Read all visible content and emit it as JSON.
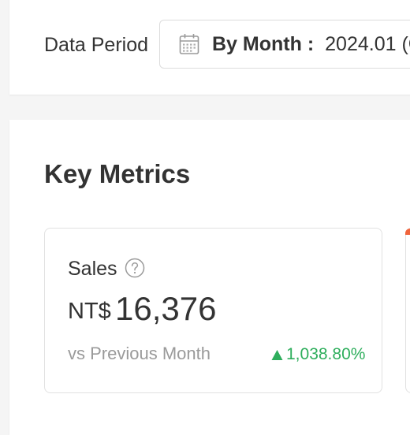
{
  "filter": {
    "label": "Data Period",
    "mode_label": "By Month :",
    "value": "2024.01 (C",
    "icon": "calendar-icon"
  },
  "key_metrics": {
    "title": "Key Metrics",
    "cards": [
      {
        "name": "Sales",
        "help_icon": "question-circle-icon",
        "currency": "NT$",
        "value": "16,376",
        "compare_label": "vs Previous Month",
        "change": "1,038.80%",
        "change_direction": "up",
        "change_color": "#2eae5c"
      }
    ]
  },
  "colors": {
    "background": "#f5f5f5",
    "card": "#ffffff",
    "positive": "#2eae5c",
    "accent": "#f0643c"
  }
}
